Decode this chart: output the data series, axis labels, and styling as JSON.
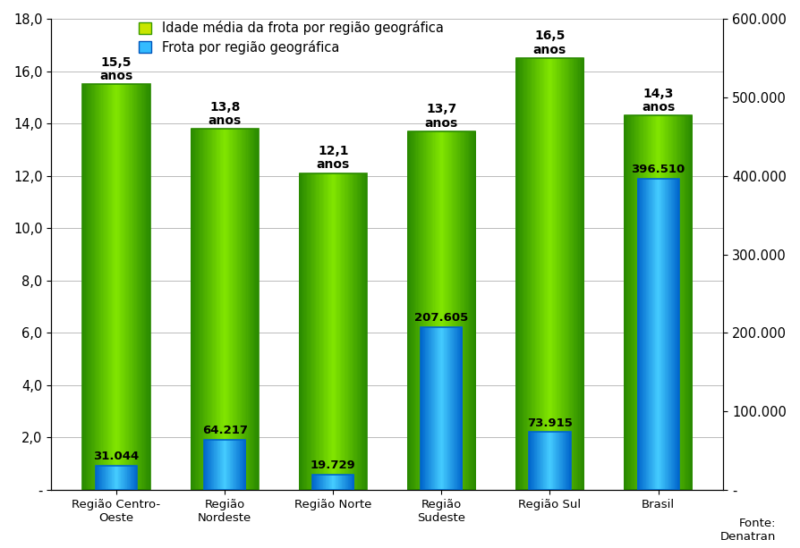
{
  "categories": [
    "Região Centro-\nOeste",
    "Região\nNordeste",
    "Região Norte",
    "Região\nSudeste",
    "Região Sul",
    "Brasil"
  ],
  "age_values": [
    15.5,
    13.8,
    12.1,
    13.7,
    16.5,
    14.3
  ],
  "fleet_values": [
    31044,
    64217,
    19729,
    207605,
    73915,
    396510
  ],
  "age_labels": [
    "15,5\nanos",
    "13,8\nanos",
    "12,1\nanos",
    "13,7\nanos",
    "16,5\nanos",
    "14,3\nanos"
  ],
  "fleet_labels": [
    "31.044",
    "64.217",
    "19.729",
    "207.605",
    "73.915",
    "396.510"
  ],
  "age_color_center": "#d4e600",
  "age_color_edge": "#2a8a00",
  "fleet_color_center": "#44ccff",
  "fleet_color_edge": "#0066cc",
  "legend_age": "Idade média da frota por região geográfica",
  "legend_fleet": "Frota por região geográfica",
  "ylim_left": [
    0,
    18
  ],
  "ylim_right": [
    0,
    600000
  ],
  "yticks_left": [
    0,
    2.0,
    4.0,
    6.0,
    8.0,
    10.0,
    12.0,
    14.0,
    16.0,
    18.0
  ],
  "yticks_right": [
    0,
    100000,
    200000,
    300000,
    400000,
    500000,
    600000
  ],
  "ytick_labels_left": [
    "-",
    "2,0",
    "4,0",
    "6,0",
    "8,0",
    "10,0",
    "12,0",
    "14,0",
    "16,0",
    "18,0"
  ],
  "ytick_labels_right": [
    "-",
    "100.000",
    "200.000",
    "300.000",
    "400.000",
    "500.000",
    "600.000"
  ],
  "source_text": "Fonte:\nDenatran",
  "background_color": "#ffffff",
  "age_bar_width": 0.62,
  "fleet_bar_width": 0.38,
  "age_label_fontsize": 10,
  "fleet_label_fontsize": 9.5
}
